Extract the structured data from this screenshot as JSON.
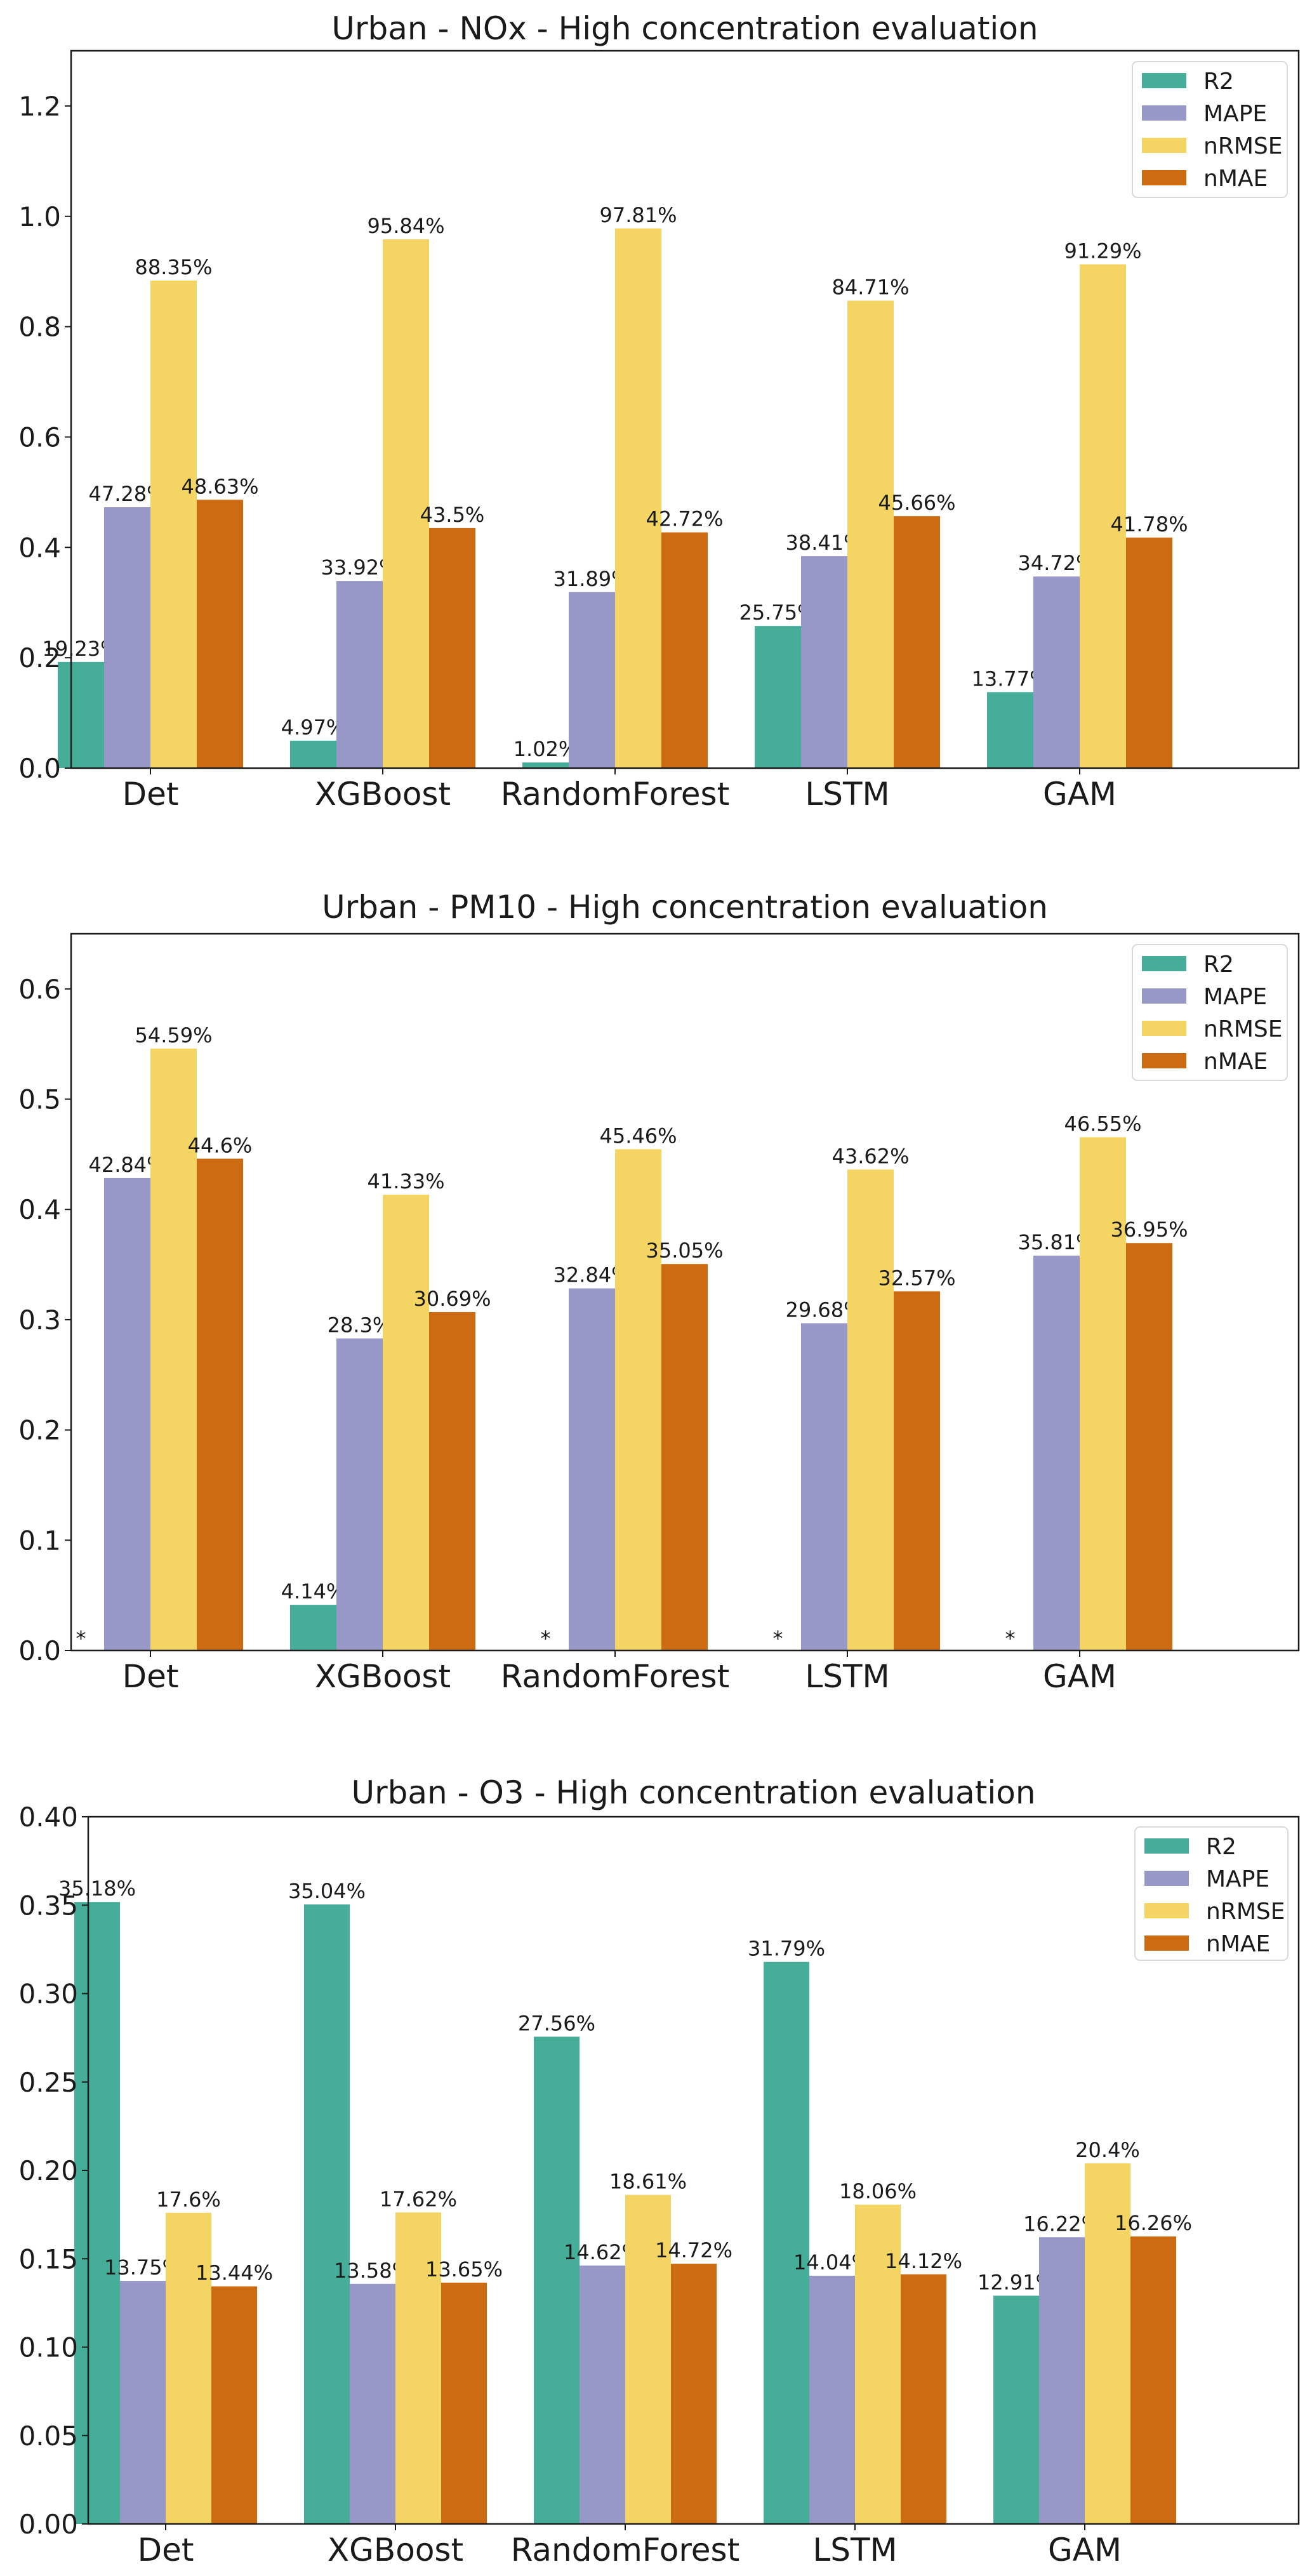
{
  "chart_data": [
    {
      "type": "bar",
      "title": "Urban - NOx - High concentration evaluation",
      "xlabel": "",
      "ylabel": "",
      "categories": [
        "Det",
        "XGBoost",
        "RandomForest",
        "LSTM",
        "GAM"
      ],
      "ylim": [
        0,
        1.3
      ],
      "yticks": [
        0.0,
        0.2,
        0.4,
        0.6,
        0.8,
        1.0,
        1.2
      ],
      "ytick_labels": [
        "0.0",
        "0.2",
        "0.4",
        "0.6",
        "0.8",
        "1.0",
        "1.2"
      ],
      "grid": false,
      "legend_position": "top-right",
      "series": [
        {
          "name": "R2",
          "color": "#45ad98",
          "values": [
            0.1923,
            0.0497,
            0.0102,
            0.2575,
            0.1377
          ],
          "labels": [
            "19.23%",
            "4.97%",
            "1.02%",
            "25.75%",
            "13.77%"
          ]
        },
        {
          "name": "MAPE",
          "color": "#9797c8",
          "values": [
            0.4728,
            0.3392,
            0.3189,
            0.3841,
            0.3472
          ],
          "labels": [
            "47.28%",
            "33.92%",
            "31.89%",
            "38.41%",
            "34.72%"
          ]
        },
        {
          "name": "nRMSE",
          "color": "#f4d563",
          "values": [
            0.8835,
            0.9584,
            0.9781,
            0.8471,
            0.9129
          ],
          "labels": [
            "88.35%",
            "95.84%",
            "97.81%",
            "84.71%",
            "91.29%"
          ]
        },
        {
          "name": "nMAE",
          "color": "#cd6b12",
          "values": [
            0.4863,
            0.435,
            0.4272,
            0.4566,
            0.4178
          ],
          "labels": [
            "48.63%",
            "43.5%",
            "42.72%",
            "45.66%",
            "41.78%"
          ]
        }
      ]
    },
    {
      "type": "bar",
      "title": "Urban - PM10 - High concentration evaluation",
      "xlabel": "",
      "ylabel": "",
      "categories": [
        "Det",
        "XGBoost",
        "RandomForest",
        "LSTM",
        "GAM"
      ],
      "ylim": [
        0,
        0.65
      ],
      "yticks": [
        0.0,
        0.1,
        0.2,
        0.3,
        0.4,
        0.5,
        0.6
      ],
      "ytick_labels": [
        "0.0",
        "0.1",
        "0.2",
        "0.3",
        "0.4",
        "0.5",
        "0.6"
      ],
      "grid": false,
      "legend_position": "top-right",
      "missing_marker": "*",
      "series": [
        {
          "name": "R2",
          "color": "#45ad98",
          "values": [
            null,
            0.0414,
            null,
            null,
            null
          ],
          "labels": [
            "*",
            "4.14%",
            "*",
            "*",
            "*"
          ]
        },
        {
          "name": "MAPE",
          "color": "#9797c8",
          "values": [
            0.4284,
            0.283,
            0.3284,
            0.2968,
            0.3581
          ],
          "labels": [
            "42.84%",
            "28.3%",
            "32.84%",
            "29.68%",
            "35.81%"
          ]
        },
        {
          "name": "nRMSE",
          "color": "#f4d563",
          "values": [
            0.5459,
            0.4133,
            0.4546,
            0.4362,
            0.4655
          ],
          "labels": [
            "54.59%",
            "41.33%",
            "45.46%",
            "43.62%",
            "46.55%"
          ]
        },
        {
          "name": "nMAE",
          "color": "#cd6b12",
          "values": [
            0.446,
            0.3069,
            0.3505,
            0.3257,
            0.3695
          ],
          "labels": [
            "44.6%",
            "30.69%",
            "35.05%",
            "32.57%",
            "36.95%"
          ]
        }
      ]
    },
    {
      "type": "bar",
      "title": "Urban - O3 - High concentration evaluation",
      "xlabel": "",
      "ylabel": "",
      "categories": [
        "Det",
        "XGBoost",
        "RandomForest",
        "LSTM",
        "GAM"
      ],
      "ylim": [
        0,
        0.4
      ],
      "yticks": [
        0.0,
        0.05,
        0.1,
        0.15,
        0.2,
        0.25,
        0.3,
        0.35,
        0.4
      ],
      "ytick_labels": [
        "0.00",
        "0.05",
        "0.10",
        "0.15",
        "0.20",
        "0.25",
        "0.30",
        "0.35",
        "0.40"
      ],
      "grid": false,
      "legend_position": "top-right",
      "series": [
        {
          "name": "R2",
          "color": "#45ad98",
          "values": [
            0.3518,
            0.3504,
            0.2756,
            0.3179,
            0.1291
          ],
          "labels": [
            "35.18%",
            "35.04%",
            "27.56%",
            "31.79%",
            "12.91%"
          ]
        },
        {
          "name": "MAPE",
          "color": "#9797c8",
          "values": [
            0.1375,
            0.1358,
            0.1462,
            0.1404,
            0.1622
          ],
          "labels": [
            "13.75%",
            "13.58%",
            "14.62%",
            "14.04%",
            "16.22%"
          ]
        },
        {
          "name": "nRMSE",
          "color": "#f4d563",
          "values": [
            0.176,
            0.1762,
            0.1861,
            0.1806,
            0.204
          ],
          "labels": [
            "17.6%",
            "17.62%",
            "18.61%",
            "18.06%",
            "20.4%"
          ]
        },
        {
          "name": "nMAE",
          "color": "#cd6b12",
          "values": [
            0.1344,
            0.1365,
            0.1472,
            0.1412,
            0.1626
          ],
          "labels": [
            "13.44%",
            "13.65%",
            "14.72%",
            "14.12%",
            "16.26%"
          ]
        }
      ]
    }
  ]
}
